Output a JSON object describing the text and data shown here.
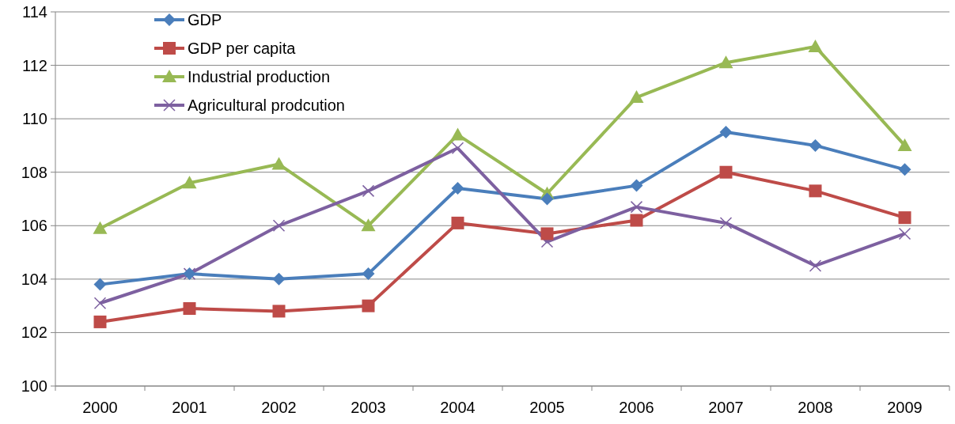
{
  "chart_data": {
    "type": "line",
    "categories": [
      "2000",
      "2001",
      "2002",
      "2003",
      "2004",
      "2005",
      "2006",
      "2007",
      "2008",
      "2009"
    ],
    "series": [
      {
        "name": "GDP",
        "color": "#4a7ebb",
        "marker": "diamond",
        "values": [
          103.8,
          104.2,
          104.0,
          104.2,
          107.4,
          107.0,
          107.5,
          109.5,
          109.0,
          108.1
        ]
      },
      {
        "name": "GDP per capita",
        "color": "#be4b48",
        "marker": "square",
        "values": [
          102.4,
          102.9,
          102.8,
          103.0,
          106.1,
          105.7,
          106.2,
          108.0,
          107.3,
          106.3
        ]
      },
      {
        "name": "Industrial production",
        "color": "#98b954",
        "marker": "triangle",
        "values": [
          105.9,
          107.6,
          108.3,
          106.0,
          109.4,
          107.2,
          110.8,
          112.1,
          112.7,
          109.0
        ]
      },
      {
        "name": "Agricultural prodcution",
        "color": "#7d60a0",
        "marker": "cross",
        "values": [
          103.1,
          104.2,
          106.0,
          107.3,
          108.9,
          105.4,
          106.7,
          106.1,
          104.5,
          105.7
        ]
      }
    ],
    "ylim": [
      100,
      114
    ],
    "yticks": [
      100,
      102,
      104,
      106,
      108,
      110,
      112,
      114
    ],
    "grid": "y",
    "legend": "top left",
    "line_style": "solid"
  }
}
